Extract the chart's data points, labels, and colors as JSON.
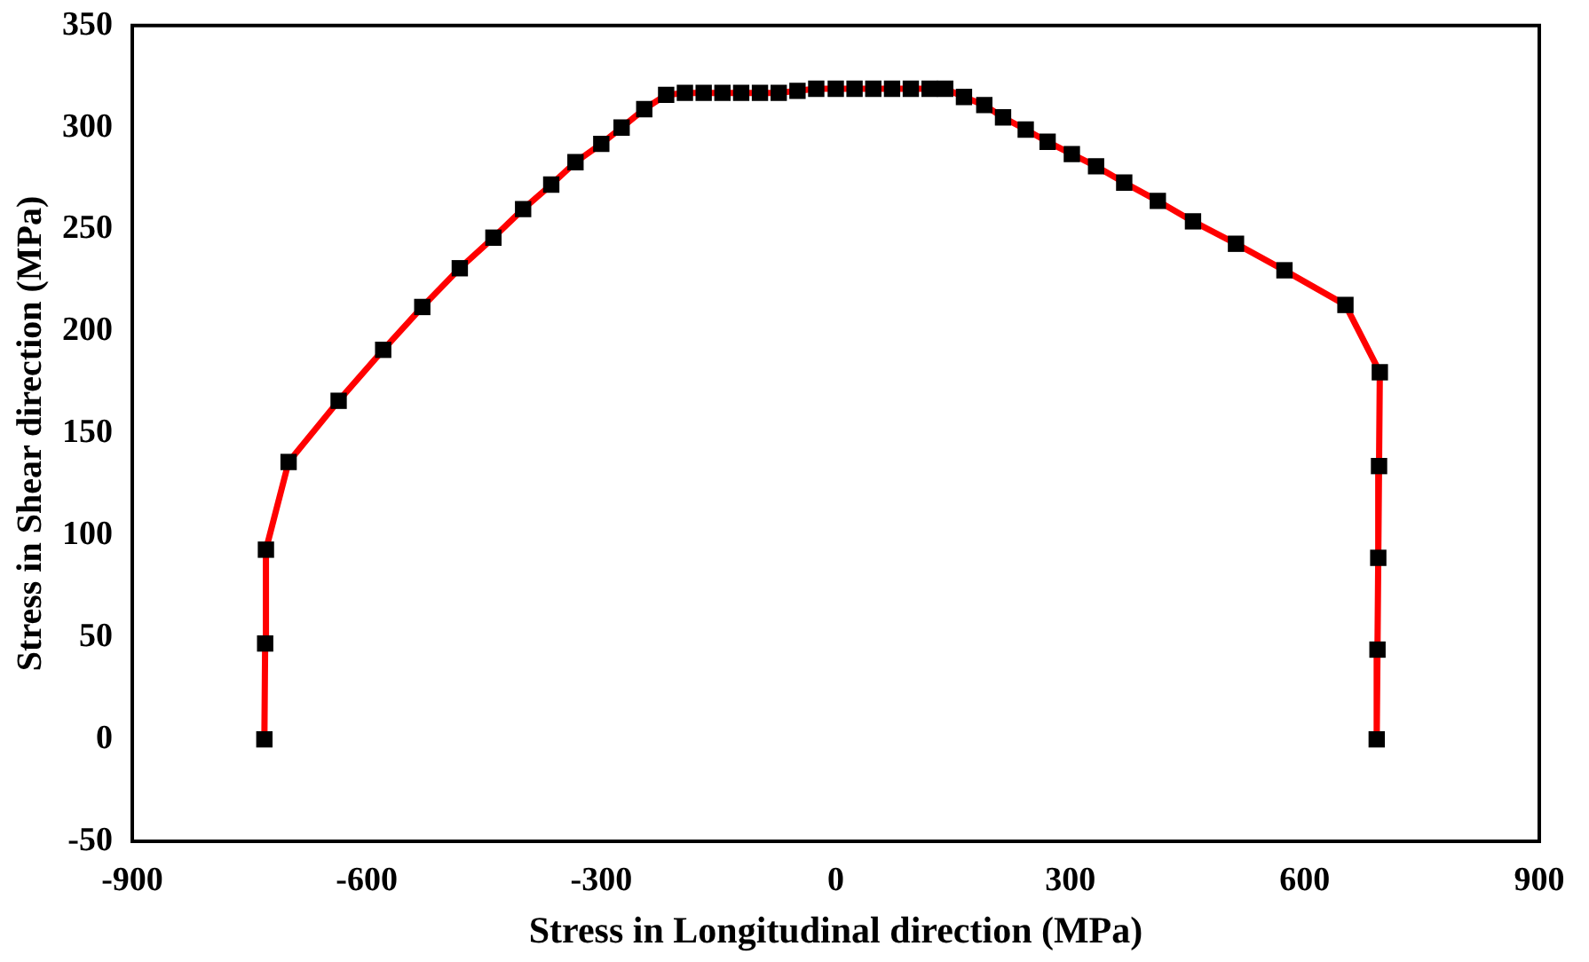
{
  "chart_data": {
    "type": "line",
    "xlabel": "Stress in Longitudinal direction (MPa)",
    "ylabel": "Stress in Shear direction (MPa)",
    "xlim": [
      -900,
      900
    ],
    "xticks": [
      -900,
      -600,
      -300,
      0,
      300,
      600,
      900
    ],
    "ylim": [
      -50,
      350
    ],
    "yticks": [
      -50,
      0,
      50,
      100,
      150,
      200,
      250,
      300,
      350
    ],
    "grid": false,
    "legend": false,
    "marker": "square",
    "line_style": "solid",
    "series": [
      {
        "color": "#ff0000",
        "x": [
          -731,
          -730,
          -729,
          -700,
          -636,
          -579,
          -529,
          -481,
          -438,
          -400,
          -364,
          -333,
          -300,
          -274,
          -245,
          -217,
          -193,
          -169,
          -145,
          -121,
          -97,
          -73,
          -49,
          -25,
          0,
          24,
          48,
          72,
          96,
          120,
          140,
          164,
          190,
          214,
          243,
          271,
          302,
          333,
          369,
          412,
          457,
          512,
          574,
          652,
          696,
          695,
          694,
          693,
          692
        ],
        "values": [
          0,
          47,
          93,
          136,
          166,
          191,
          212,
          231,
          246,
          260,
          272,
          283,
          292,
          300,
          309,
          316,
          317,
          317,
          317,
          317,
          317,
          317,
          318,
          319,
          319,
          319,
          319,
          319,
          319,
          319,
          319,
          315,
          311,
          305,
          299,
          293,
          287,
          281,
          273,
          264,
          254,
          243,
          230,
          213,
          180,
          134,
          89,
          44,
          0
        ]
      }
    ]
  }
}
